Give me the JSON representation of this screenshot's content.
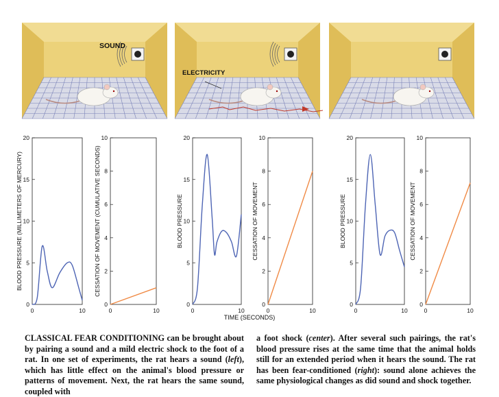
{
  "panels": {
    "sound_label": "SOUND",
    "electricity_label": "ELECTRICITY"
  },
  "colors": {
    "wall": "#ecd27a",
    "wall_side": "#dfbd58",
    "ceiling": "#f1dc93",
    "floor": "#d9dbe7",
    "grid": "#7a82b8",
    "blood_pressure_line": "#4d64b4",
    "movement_line": "#f08a45",
    "spark": "#c0392b"
  },
  "shared_xlabel": "TIME (SECONDS)",
  "chart_data": [
    {
      "type": "line",
      "panel": "left",
      "ylabel": "BLOOD PRESSURE (MILLIMETERS OF MERCURY)",
      "xlim": [
        0,
        10
      ],
      "ylim": [
        0,
        20
      ],
      "xticks": [
        "0",
        "10"
      ],
      "yticks": [
        "5",
        "10",
        "15",
        "20"
      ],
      "series": [
        {
          "name": "blood pressure",
          "x": [
            0,
            1,
            2,
            3,
            4,
            5.5,
            7,
            8,
            9.3,
            10
          ],
          "y": [
            0,
            0.8,
            7,
            4,
            2,
            3.8,
            5,
            4.7,
            2,
            0.5
          ]
        }
      ]
    },
    {
      "type": "line",
      "panel": "left",
      "ylabel": "CESSATION OF MOVEMENT (CUMULATIVE SECONDS)",
      "xlim": [
        0,
        10
      ],
      "ylim": [
        0,
        10
      ],
      "xticks": [
        "0",
        "10"
      ],
      "yticks": [
        "2",
        "4",
        "6",
        "8",
        "10"
      ],
      "series": [
        {
          "name": "cessation of movement",
          "x": [
            0,
            10
          ],
          "y": [
            0,
            1
          ]
        }
      ]
    },
    {
      "type": "line",
      "panel": "center",
      "ylabel": "BLOOD PRESSURE",
      "xlim": [
        0,
        10
      ],
      "ylim": [
        0,
        20
      ],
      "xticks": [
        "0",
        "10"
      ],
      "yticks": [
        "5",
        "10",
        "15",
        "20"
      ],
      "series": [
        {
          "name": "blood pressure",
          "x": [
            0,
            1,
            2,
            3,
            4,
            4.5,
            5,
            6,
            7,
            8,
            9,
            10
          ],
          "y": [
            0,
            2,
            12,
            18,
            10.5,
            6,
            7.5,
            8.8,
            8.6,
            7.5,
            5.8,
            10.8
          ]
        }
      ]
    },
    {
      "type": "line",
      "panel": "center",
      "ylabel": "CESSATION OF MOVEMENT",
      "xlim": [
        0,
        10
      ],
      "ylim": [
        0,
        10
      ],
      "xticks": [
        "0",
        "10"
      ],
      "yticks": [
        "2",
        "4",
        "6",
        "8",
        "10"
      ],
      "series": [
        {
          "name": "cessation of movement",
          "x": [
            0,
            10
          ],
          "y": [
            0,
            8
          ]
        }
      ]
    },
    {
      "type": "line",
      "panel": "right",
      "ylabel": "BLOOD PRESSURE",
      "xlim": [
        0,
        10
      ],
      "ylim": [
        0,
        20
      ],
      "xticks": [
        "0",
        "10"
      ],
      "yticks": [
        "5",
        "10",
        "15",
        "20"
      ],
      "series": [
        {
          "name": "blood pressure",
          "x": [
            0,
            1,
            2,
            3,
            4,
            5,
            6,
            7,
            8,
            9,
            10
          ],
          "y": [
            0,
            2,
            12,
            18,
            12,
            6,
            8.2,
            8.9,
            8.6,
            6.5,
            4.5
          ]
        }
      ]
    },
    {
      "type": "line",
      "panel": "right",
      "ylabel": "CESSATION OF MOVEMENT",
      "xlim": [
        0,
        10
      ],
      "ylim": [
        0,
        10
      ],
      "xticks": [
        "0",
        "10"
      ],
      "yticks": [
        "2",
        "4",
        "6",
        "8",
        "10"
      ],
      "series": [
        {
          "name": "cessation of movement",
          "x": [
            0,
            10
          ],
          "y": [
            0,
            7.3
          ]
        }
      ]
    }
  ],
  "caption": {
    "lead": "CLASSICAL FEAR CONDITIONING",
    "p1": " can be brought about by pairing a sound and a mild electric shock to the foot of a rat. In one set of experiments, the rat hears a sound (",
    "left_word": "left",
    "p2": "), which has little effect on the animal's blood pressure or patterns of movement. Next, the rat hears the same sound, coupled with",
    "p3": "a foot shock (",
    "center_word": "center",
    "p4": "). After several such pairings, the rat's blood pressure rises at the same time that the animal holds still for an extended period when it hears the sound. The rat has been fear-conditioned (",
    "right_word": "right",
    "p5": "): sound alone achieves the same physiological changes as did sound and shock together."
  }
}
